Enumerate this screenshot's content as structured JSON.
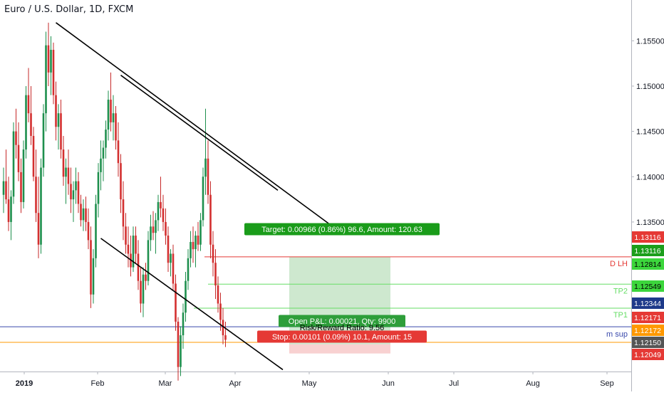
{
  "chart_data": {
    "type": "candlestick",
    "title": "Euro / U.S. Dollar, 1D, FXCM",
    "ylim": [
      1.1185,
      1.1595
    ],
    "y_ticks": [
      {
        "value": 1.155,
        "label": "1.15500"
      },
      {
        "value": 1.15,
        "label": "1.15000"
      },
      {
        "value": 1.145,
        "label": "1.14500"
      },
      {
        "value": 1.14,
        "label": "1.14000"
      },
      {
        "value": 1.135,
        "label": "1.13500"
      }
    ],
    "x_ticks": [
      {
        "label": "2019",
        "bold": true
      },
      {
        "label": "Feb",
        "bold": false
      },
      {
        "label": "Mar",
        "bold": false
      },
      {
        "label": "Apr",
        "bold": false
      },
      {
        "label": "May",
        "bold": false
      },
      {
        "label": "Jun",
        "bold": false
      },
      {
        "label": "Jul",
        "bold": false
      },
      {
        "label": "Aug",
        "bold": false
      },
      {
        "label": "Sep",
        "bold": false
      }
    ],
    "colors": {
      "up": "#26a69a",
      "down": "#ef5350",
      "up_wick": "#1e8f4d",
      "down_wick": "#c62828"
    },
    "candles": [
      {
        "o": 1.138,
        "h": 1.141,
        "l": 1.136,
        "c": 1.1395
      },
      {
        "o": 1.1395,
        "h": 1.143,
        "l": 1.137,
        "c": 1.1375
      },
      {
        "o": 1.1375,
        "h": 1.14,
        "l": 1.134,
        "c": 1.135
      },
      {
        "o": 1.135,
        "h": 1.1385,
        "l": 1.133,
        "c": 1.1378
      },
      {
        "o": 1.1378,
        "h": 1.146,
        "l": 1.137,
        "c": 1.145
      },
      {
        "o": 1.145,
        "h": 1.1475,
        "l": 1.142,
        "c": 1.1435
      },
      {
        "o": 1.1435,
        "h": 1.146,
        "l": 1.1395,
        "c": 1.1405
      },
      {
        "o": 1.1405,
        "h": 1.142,
        "l": 1.136,
        "c": 1.1372
      },
      {
        "o": 1.1372,
        "h": 1.144,
        "l": 1.1365,
        "c": 1.143
      },
      {
        "o": 1.143,
        "h": 1.15,
        "l": 1.142,
        "c": 1.149
      },
      {
        "o": 1.149,
        "h": 1.152,
        "l": 1.146,
        "c": 1.147
      },
      {
        "o": 1.147,
        "h": 1.15,
        "l": 1.1435,
        "c": 1.1445
      },
      {
        "o": 1.1445,
        "h": 1.1455,
        "l": 1.1395,
        "c": 1.14
      },
      {
        "o": 1.14,
        "h": 1.143,
        "l": 1.135,
        "c": 1.136
      },
      {
        "o": 1.136,
        "h": 1.14,
        "l": 1.131,
        "c": 1.1325
      },
      {
        "o": 1.1325,
        "h": 1.142,
        "l": 1.1315,
        "c": 1.141
      },
      {
        "o": 1.141,
        "h": 1.148,
        "l": 1.14,
        "c": 1.147
      },
      {
        "o": 1.147,
        "h": 1.156,
        "l": 1.145,
        "c": 1.1545
      },
      {
        "o": 1.1545,
        "h": 1.157,
        "l": 1.15,
        "c": 1.1515
      },
      {
        "o": 1.1515,
        "h": 1.1555,
        "l": 1.149,
        "c": 1.154
      },
      {
        "o": 1.154,
        "h": 1.1548,
        "l": 1.148,
        "c": 1.149
      },
      {
        "o": 1.149,
        "h": 1.1505,
        "l": 1.144,
        "c": 1.1455
      },
      {
        "o": 1.1455,
        "h": 1.148,
        "l": 1.143,
        "c": 1.147
      },
      {
        "o": 1.147,
        "h": 1.1485,
        "l": 1.142,
        "c": 1.143
      },
      {
        "o": 1.143,
        "h": 1.1445,
        "l": 1.139,
        "c": 1.14
      },
      {
        "o": 1.14,
        "h": 1.142,
        "l": 1.137,
        "c": 1.141
      },
      {
        "o": 1.141,
        "h": 1.143,
        "l": 1.138,
        "c": 1.1392
      },
      {
        "o": 1.1392,
        "h": 1.141,
        "l": 1.136,
        "c": 1.1375
      },
      {
        "o": 1.1375,
        "h": 1.1395,
        "l": 1.135,
        "c": 1.1385
      },
      {
        "o": 1.1385,
        "h": 1.141,
        "l": 1.137,
        "c": 1.1395
      },
      {
        "o": 1.1395,
        "h": 1.1405,
        "l": 1.136,
        "c": 1.137
      },
      {
        "o": 1.137,
        "h": 1.138,
        "l": 1.1345,
        "c": 1.1352
      },
      {
        "o": 1.1352,
        "h": 1.1375,
        "l": 1.134,
        "c": 1.1365
      },
      {
        "o": 1.1365,
        "h": 1.1378,
        "l": 1.134,
        "c": 1.135
      },
      {
        "o": 1.135,
        "h": 1.1365,
        "l": 1.132,
        "c": 1.133
      },
      {
        "o": 1.133,
        "h": 1.1345,
        "l": 1.1255,
        "c": 1.127
      },
      {
        "o": 1.127,
        "h": 1.132,
        "l": 1.126,
        "c": 1.131
      },
      {
        "o": 1.131,
        "h": 1.138,
        "l": 1.13,
        "c": 1.137
      },
      {
        "o": 1.137,
        "h": 1.1415,
        "l": 1.1355,
        "c": 1.1405
      },
      {
        "o": 1.1405,
        "h": 1.144,
        "l": 1.1385,
        "c": 1.142
      },
      {
        "o": 1.142,
        "h": 1.144,
        "l": 1.1395,
        "c": 1.1432
      },
      {
        "o": 1.1432,
        "h": 1.1462,
        "l": 1.142,
        "c": 1.1452
      },
      {
        "o": 1.1452,
        "h": 1.1495,
        "l": 1.144,
        "c": 1.1485
      },
      {
        "o": 1.1485,
        "h": 1.1515,
        "l": 1.145,
        "c": 1.146
      },
      {
        "o": 1.146,
        "h": 1.149,
        "l": 1.144,
        "c": 1.147
      },
      {
        "o": 1.147,
        "h": 1.1478,
        "l": 1.143,
        "c": 1.144
      },
      {
        "o": 1.144,
        "h": 1.146,
        "l": 1.14,
        "c": 1.1415
      },
      {
        "o": 1.1415,
        "h": 1.1425,
        "l": 1.136,
        "c": 1.1375
      },
      {
        "o": 1.1375,
        "h": 1.1395,
        "l": 1.133,
        "c": 1.1345
      },
      {
        "o": 1.1345,
        "h": 1.136,
        "l": 1.1315,
        "c": 1.1325
      },
      {
        "o": 1.1325,
        "h": 1.1345,
        "l": 1.13,
        "c": 1.1315
      },
      {
        "o": 1.1315,
        "h": 1.1335,
        "l": 1.129,
        "c": 1.13
      },
      {
        "o": 1.13,
        "h": 1.1345,
        "l": 1.1295,
        "c": 1.1335
      },
      {
        "o": 1.1335,
        "h": 1.1345,
        "l": 1.1305,
        "c": 1.1315
      },
      {
        "o": 1.1315,
        "h": 1.133,
        "l": 1.1275,
        "c": 1.1285
      },
      {
        "o": 1.1285,
        "h": 1.13,
        "l": 1.125,
        "c": 1.126
      },
      {
        "o": 1.126,
        "h": 1.13,
        "l": 1.1245,
        "c": 1.1292
      },
      {
        "o": 1.1292,
        "h": 1.1305,
        "l": 1.1275,
        "c": 1.1285
      },
      {
        "o": 1.1285,
        "h": 1.134,
        "l": 1.128,
        "c": 1.133
      },
      {
        "o": 1.133,
        "h": 1.1358,
        "l": 1.1318,
        "c": 1.1345
      },
      {
        "o": 1.1345,
        "h": 1.1362,
        "l": 1.133,
        "c": 1.1338
      },
      {
        "o": 1.1338,
        "h": 1.136,
        "l": 1.1315,
        "c": 1.1352
      },
      {
        "o": 1.1352,
        "h": 1.138,
        "l": 1.134,
        "c": 1.1372
      },
      {
        "o": 1.1372,
        "h": 1.14,
        "l": 1.1355,
        "c": 1.1365
      },
      {
        "o": 1.1365,
        "h": 1.138,
        "l": 1.134,
        "c": 1.135
      },
      {
        "o": 1.135,
        "h": 1.1365,
        "l": 1.1325,
        "c": 1.1335
      },
      {
        "o": 1.1335,
        "h": 1.1345,
        "l": 1.1295,
        "c": 1.1305
      },
      {
        "o": 1.1305,
        "h": 1.132,
        "l": 1.129,
        "c": 1.1315
      },
      {
        "o": 1.1315,
        "h": 1.1325,
        "l": 1.1275,
        "c": 1.1282
      },
      {
        "o": 1.1282,
        "h": 1.1292,
        "l": 1.123,
        "c": 1.124
      },
      {
        "o": 1.124,
        "h": 1.1245,
        "l": 1.1175,
        "c": 1.119
      },
      {
        "o": 1.119,
        "h": 1.1235,
        "l": 1.118,
        "c": 1.1225
      },
      {
        "o": 1.1225,
        "h": 1.126,
        "l": 1.121,
        "c": 1.125
      },
      {
        "o": 1.125,
        "h": 1.1295,
        "l": 1.124,
        "c": 1.1285
      },
      {
        "o": 1.1285,
        "h": 1.132,
        "l": 1.1275,
        "c": 1.131
      },
      {
        "o": 1.131,
        "h": 1.134,
        "l": 1.13,
        "c": 1.1328
      },
      {
        "o": 1.1328,
        "h": 1.1345,
        "l": 1.1305,
        "c": 1.132
      },
      {
        "o": 1.132,
        "h": 1.134,
        "l": 1.13,
        "c": 1.1335
      },
      {
        "o": 1.1335,
        "h": 1.135,
        "l": 1.1318,
        "c": 1.1325
      },
      {
        "o": 1.1325,
        "h": 1.136,
        "l": 1.1318,
        "c": 1.1352
      },
      {
        "o": 1.1352,
        "h": 1.141,
        "l": 1.1345,
        "c": 1.14
      },
      {
        "o": 1.14,
        "h": 1.1475,
        "l": 1.138,
        "c": 1.142
      },
      {
        "o": 1.142,
        "h": 1.144,
        "l": 1.137,
        "c": 1.138
      },
      {
        "o": 1.138,
        "h": 1.1395,
        "l": 1.131,
        "c": 1.1325
      },
      {
        "o": 1.1325,
        "h": 1.134,
        "l": 1.129,
        "c": 1.1305
      },
      {
        "o": 1.1305,
        "h": 1.132,
        "l": 1.1265,
        "c": 1.128
      },
      {
        "o": 1.128,
        "h": 1.129,
        "l": 1.125,
        "c": 1.126
      },
      {
        "o": 1.126,
        "h": 1.1272,
        "l": 1.123,
        "c": 1.1242
      },
      {
        "o": 1.1242,
        "h": 1.1255,
        "l": 1.1215,
        "c": 1.1225
      },
      {
        "o": 1.1225,
        "h": 1.124,
        "l": 1.1212,
        "c": 1.122
      }
    ],
    "trendlines": [
      {
        "name": "upper-channel-line",
        "from": [
          21,
          1.157
        ],
        "to": [
          132,
          1.1345
        ]
      },
      {
        "name": "upper-channel-line-2",
        "from": [
          47,
          1.1512
        ],
        "to": [
          110,
          1.1385
        ]
      },
      {
        "name": "lower-channel-line",
        "from": [
          39,
          1.1332
        ],
        "to": [
          112,
          1.1187
        ]
      }
    ],
    "levels": [
      {
        "name": "D LH",
        "value": 1.13116,
        "color": "#e53935"
      },
      {
        "name": "TP2",
        "value": 1.12814,
        "color": "#66dd66"
      },
      {
        "name": "TP1",
        "value": 1.12549,
        "color": "#66dd66"
      },
      {
        "name": "m sup",
        "value": 1.12344,
        "color": "#3949ab"
      },
      {
        "name": "",
        "value": 1.12172,
        "color": "#ff9800"
      }
    ],
    "position": {
      "entry": 1.1215,
      "target": 1.13116,
      "stop": 1.12049,
      "target_label": "Target: 0.00966 (0.86%) 96.6, Amount: 120.63",
      "pnl_label": "Open P&L: 0.00021, Qty: 9900",
      "rr_label": "Risk/Reward Ratio: 9.56",
      "stop_label": "Stop: 0.00101 (0.09%) 10.1, Amount: 15"
    },
    "price_badges": [
      {
        "label": "1.13116",
        "value": 1.13116,
        "bg": "#e53935",
        "fg": "#ffffff"
      },
      {
        "label": "1.13116",
        "value": 1.13116,
        "bg": "#1b9e1b",
        "fg": "#ffffff",
        "offset": 1
      },
      {
        "label": "1.12814",
        "value": 1.12814,
        "bg": "#3cd63c",
        "fg": "#000000"
      },
      {
        "label": "1.12549",
        "value": 1.12549,
        "bg": "#3cd63c",
        "fg": "#000000"
      },
      {
        "label": "1.12344",
        "value": 1.12344,
        "bg": "#1e3a8a",
        "fg": "#ffffff"
      },
      {
        "label": "1.12171",
        "value": 1.12171,
        "bg": "#e53935",
        "fg": "#ffffff"
      },
      {
        "label": "1.12172",
        "value": 1.12172,
        "bg": "#ff9800",
        "fg": "#ffffff"
      },
      {
        "label": "1.12150",
        "value": 1.1215,
        "bg": "#555555",
        "fg": "#ffffff"
      },
      {
        "label": "1.12049",
        "value": 1.12049,
        "bg": "#e53935",
        "fg": "#ffffff"
      }
    ]
  }
}
